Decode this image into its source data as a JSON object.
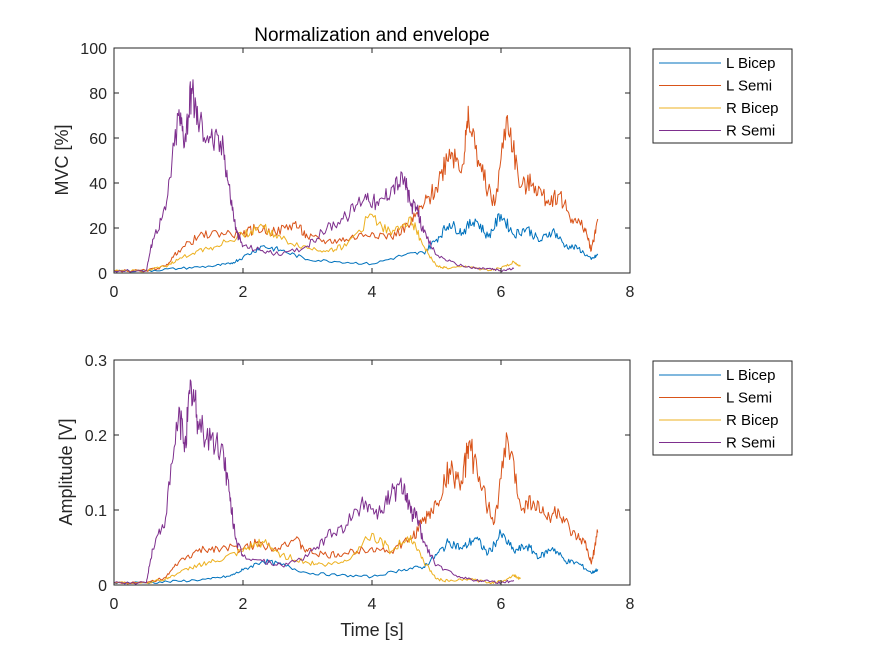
{
  "chart_data": [
    {
      "type": "line",
      "title": "Normalization and envelope",
      "xlabel": "",
      "ylabel": "MVC [%]",
      "xlim": [
        0,
        8
      ],
      "ylim": [
        0,
        100
      ],
      "xticks": [
        0,
        2,
        4,
        6,
        8
      ],
      "yticks": [
        0,
        20,
        40,
        60,
        80,
        100
      ],
      "legend_position": "outside-right-top",
      "series": [
        {
          "name": "L Bicep",
          "color": "#0072BD",
          "x": [
            0,
            0.5,
            1.0,
            1.5,
            1.8,
            2.0,
            2.3,
            2.6,
            3.0,
            3.5,
            4.0,
            4.5,
            4.8,
            5.0,
            5.2,
            5.4,
            5.6,
            5.8,
            6.0,
            6.2,
            6.4,
            6.6,
            6.8,
            7.0,
            7.2,
            7.4,
            7.5
          ],
          "y": [
            1,
            1,
            2,
            3,
            4,
            7,
            12,
            10,
            6,
            5,
            4,
            8,
            9,
            15,
            22,
            18,
            24,
            16,
            26,
            17,
            20,
            14,
            19,
            12,
            11,
            6,
            8
          ]
        },
        {
          "name": "L Semi",
          "color": "#D95319",
          "x": [
            0,
            0.5,
            0.8,
            1.0,
            1.3,
            1.6,
            2.0,
            2.2,
            2.5,
            2.8,
            3.0,
            3.3,
            3.6,
            4.0,
            4.3,
            4.6,
            4.8,
            5.0,
            5.2,
            5.4,
            5.5,
            5.7,
            5.9,
            6.1,
            6.3,
            6.5,
            6.7,
            6.9,
            7.1,
            7.3,
            7.4,
            7.5
          ],
          "y": [
            1,
            1,
            3,
            10,
            16,
            18,
            17,
            20,
            18,
            22,
            16,
            14,
            15,
            18,
            16,
            22,
            30,
            38,
            55,
            48,
            68,
            45,
            30,
            70,
            38,
            40,
            32,
            35,
            24,
            20,
            10,
            24
          ]
        },
        {
          "name": "R Bicep",
          "color": "#EDB120",
          "x": [
            0,
            0.5,
            0.8,
            1.0,
            1.3,
            1.6,
            2.0,
            2.3,
            2.6,
            3.0,
            3.3,
            3.6,
            4.0,
            4.3,
            4.6,
            4.8,
            5.0,
            5.2,
            5.5,
            5.8,
            6.0,
            6.2,
            6.3
          ],
          "y": [
            1,
            1,
            3,
            6,
            10,
            12,
            17,
            21,
            15,
            11,
            10,
            12,
            26,
            17,
            25,
            12,
            3,
            2,
            3,
            1,
            2,
            5,
            3
          ]
        },
        {
          "name": "R Semi",
          "color": "#7E2F8E",
          "x": [
            0,
            0.5,
            0.6,
            0.8,
            1.0,
            1.1,
            1.2,
            1.3,
            1.5,
            1.7,
            1.8,
            1.9,
            2.0,
            2.3,
            2.6,
            3.0,
            3.3,
            3.6,
            3.9,
            4.1,
            4.3,
            4.5,
            4.6,
            4.7,
            4.8,
            5.0,
            5.3,
            5.6,
            5.8,
            6.0,
            6.2
          ],
          "y": [
            1,
            1,
            15,
            28,
            70,
            60,
            82,
            68,
            60,
            55,
            35,
            18,
            12,
            10,
            8,
            12,
            20,
            25,
            35,
            30,
            38,
            42,
            30,
            28,
            18,
            8,
            4,
            2,
            2,
            1,
            2
          ]
        }
      ]
    },
    {
      "type": "line",
      "title": "",
      "xlabel": "Time [s]",
      "ylabel": "Amplitude [V]",
      "xlim": [
        0,
        8
      ],
      "ylim": [
        0,
        0.3
      ],
      "xticks": [
        0,
        2,
        4,
        6,
        8
      ],
      "yticks": [
        0,
        0.1,
        0.2,
        0.3
      ],
      "legend_position": "outside-right-top",
      "series": [
        {
          "name": "L Bicep",
          "color": "#0072BD",
          "x": [
            0,
            0.5,
            1.0,
            1.5,
            1.8,
            2.0,
            2.3,
            2.6,
            3.0,
            3.5,
            4.0,
            4.5,
            4.8,
            5.0,
            5.2,
            5.4,
            5.6,
            5.8,
            6.0,
            6.2,
            6.4,
            6.6,
            6.8,
            7.0,
            7.2,
            7.4,
            7.5
          ],
          "y": [
            0.003,
            0.003,
            0.005,
            0.008,
            0.012,
            0.02,
            0.032,
            0.027,
            0.016,
            0.013,
            0.011,
            0.021,
            0.024,
            0.04,
            0.058,
            0.048,
            0.063,
            0.042,
            0.068,
            0.045,
            0.052,
            0.037,
            0.05,
            0.032,
            0.029,
            0.016,
            0.021
          ]
        },
        {
          "name": "L Semi",
          "color": "#D95319",
          "x": [
            0,
            0.5,
            0.8,
            1.0,
            1.3,
            1.6,
            2.0,
            2.2,
            2.5,
            2.8,
            3.0,
            3.3,
            3.6,
            4.0,
            4.3,
            4.6,
            4.8,
            5.0,
            5.2,
            5.4,
            5.5,
            5.7,
            5.9,
            6.1,
            6.3,
            6.5,
            6.7,
            6.9,
            7.1,
            7.3,
            7.4,
            7.5
          ],
          "y": [
            0.003,
            0.003,
            0.01,
            0.03,
            0.045,
            0.05,
            0.048,
            0.056,
            0.05,
            0.061,
            0.045,
            0.039,
            0.042,
            0.05,
            0.045,
            0.061,
            0.085,
            0.107,
            0.155,
            0.135,
            0.19,
            0.126,
            0.084,
            0.197,
            0.107,
            0.112,
            0.09,
            0.098,
            0.067,
            0.056,
            0.028,
            0.07
          ]
        },
        {
          "name": "R Bicep",
          "color": "#EDB120",
          "x": [
            0,
            0.5,
            0.8,
            1.0,
            1.3,
            1.6,
            2.0,
            2.3,
            2.6,
            3.0,
            3.3,
            3.6,
            4.0,
            4.3,
            4.6,
            4.8,
            5.0,
            5.2,
            5.5,
            5.8,
            6.0,
            6.2,
            6.3
          ],
          "y": [
            0.003,
            0.003,
            0.008,
            0.016,
            0.027,
            0.032,
            0.045,
            0.058,
            0.04,
            0.03,
            0.027,
            0.032,
            0.069,
            0.045,
            0.066,
            0.032,
            0.008,
            0.005,
            0.008,
            0.003,
            0.005,
            0.013,
            0.008
          ]
        },
        {
          "name": "R Semi",
          "color": "#7E2F8E",
          "x": [
            0,
            0.5,
            0.6,
            0.8,
            1.0,
            1.1,
            1.2,
            1.3,
            1.5,
            1.7,
            1.8,
            1.9,
            2.0,
            2.3,
            2.6,
            3.0,
            3.3,
            3.6,
            3.9,
            4.1,
            4.3,
            4.5,
            4.6,
            4.7,
            4.8,
            5.0,
            5.3,
            5.6,
            5.8,
            6.0,
            6.2
          ],
          "y": [
            0.003,
            0.003,
            0.048,
            0.09,
            0.225,
            0.193,
            0.263,
            0.218,
            0.193,
            0.176,
            0.112,
            0.058,
            0.038,
            0.032,
            0.026,
            0.038,
            0.064,
            0.08,
            0.112,
            0.096,
            0.122,
            0.135,
            0.096,
            0.09,
            0.058,
            0.026,
            0.013,
            0.006,
            0.006,
            0.003,
            0.006
          ]
        }
      ]
    }
  ]
}
